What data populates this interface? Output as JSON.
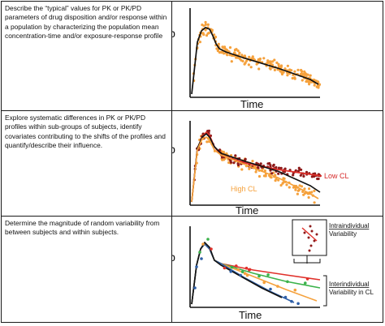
{
  "rows": [
    {
      "text": "Describe the “typical” values for PK or PK/PD parameters of drug disposition and/or response within a population by characterizing the population mean concentration-time and/or exposure-response profile",
      "ylabel": "Cp",
      "xlabel": "Time"
    },
    {
      "text": "Explore systematic differences in PK or PK/PD profiles within sub-groups of subjects, identify covariates contributing to the shifts of the profiles and quantify/describe their influence.",
      "ylabel": "Cp",
      "xlabel": "Time",
      "low_label": "Low CL",
      "high_label": "High CL"
    },
    {
      "text": "Determine the magnitude of random variability from between subjects and within subjects.",
      "ylabel": "Cp",
      "xlabel": "Time",
      "intra_label": [
        "Intraindividual",
        "Variability"
      ],
      "inter_label": [
        "Interindividual",
        "Variability in CL"
      ]
    }
  ],
  "colors": {
    "orange": "#F5A13C",
    "dark_red": "#8E1A1A",
    "red_line": "#E0302A",
    "black": "#111111",
    "green": "#3BB24A",
    "blue": "#2E5FA8",
    "low_cl_text": "#D62828",
    "high_cl_text": "#F5A13C"
  }
}
